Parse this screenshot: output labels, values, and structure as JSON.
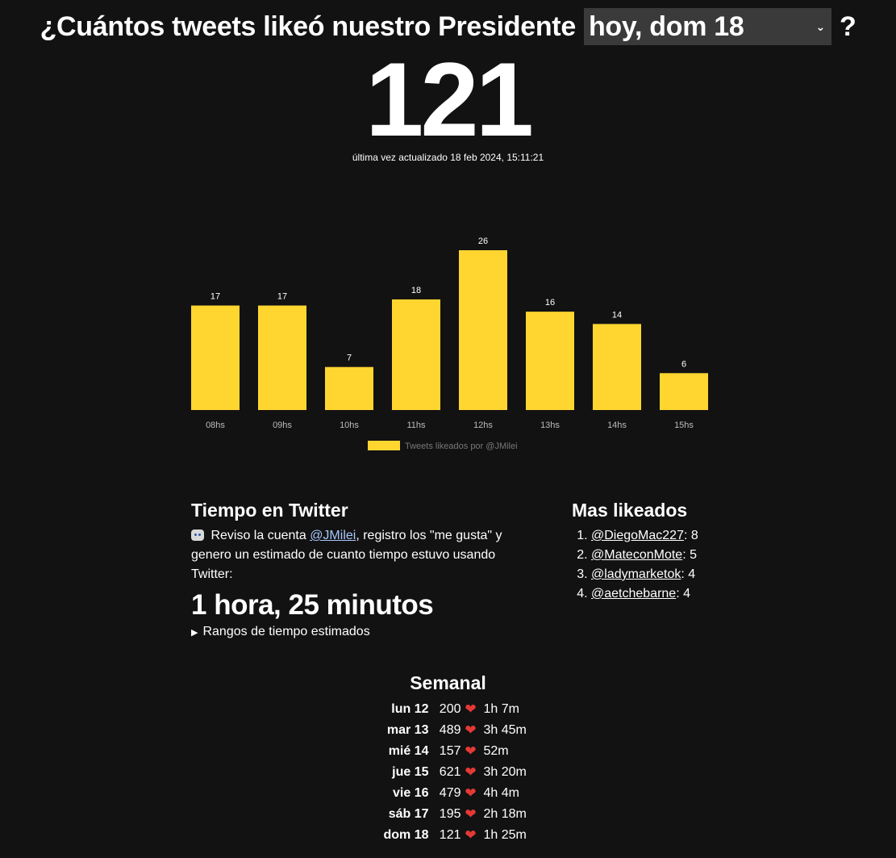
{
  "header": {
    "question": "¿Cuántos tweets likeó nuestro Presidente",
    "selected_day": "hoy, dom 18",
    "question_end": "?"
  },
  "count": "121",
  "updated": "última vez actualizado 18 feb 2024, 15:11:21",
  "chart_data": {
    "type": "bar",
    "categories": [
      "08hs",
      "09hs",
      "10hs",
      "11hs",
      "12hs",
      "13hs",
      "14hs",
      "15hs"
    ],
    "values": [
      17,
      17,
      7,
      18,
      26,
      16,
      14,
      6
    ],
    "series": [
      {
        "name": "Tweets likeados por @JMilei",
        "values": [
          17,
          17,
          7,
          18,
          26,
          16,
          14,
          6
        ]
      }
    ],
    "ylim": [
      0,
      26
    ],
    "bar_color": "#ffd630",
    "legend_position": "bottom"
  },
  "time": {
    "title": "Tiempo en Twitter",
    "intro_before": " Reviso la cuenta ",
    "account": "@JMilei",
    "intro_after": ", registro los \"me gusta\" y genero un estimado de cuanto tiempo estuvo usando Twitter:",
    "duration": "1 hora, 25 minutos",
    "ranges_label": "Rangos de tiempo estimados"
  },
  "top": {
    "title": "Mas likeados",
    "items": [
      {
        "user": "@DiegoMac227",
        "count": ": 8"
      },
      {
        "user": "@MateconMote",
        "count": ": 5"
      },
      {
        "user": "@ladymarketok",
        "count": ": 4"
      },
      {
        "user": "@aetchebarne",
        "count": ": 4"
      }
    ]
  },
  "weekly": {
    "title": "Semanal",
    "rows": [
      {
        "day": "lun 12",
        "count": "200",
        "time": "1h 7m"
      },
      {
        "day": "mar 13",
        "count": "489",
        "time": "3h 45m"
      },
      {
        "day": "mié 14",
        "count": "157",
        "time": "52m"
      },
      {
        "day": "jue 15",
        "count": "621",
        "time": "3h 20m"
      },
      {
        "day": "vie 16",
        "count": "479",
        "time": "4h 4m"
      },
      {
        "day": "sáb 17",
        "count": "195",
        "time": "2h 18m"
      },
      {
        "day": "dom 18",
        "count": "121",
        "time": "1h 25m"
      }
    ]
  },
  "colors": {
    "background": "#121212",
    "accent": "#ffd630",
    "heart": "#e53935",
    "link": "#a8c7ff"
  }
}
